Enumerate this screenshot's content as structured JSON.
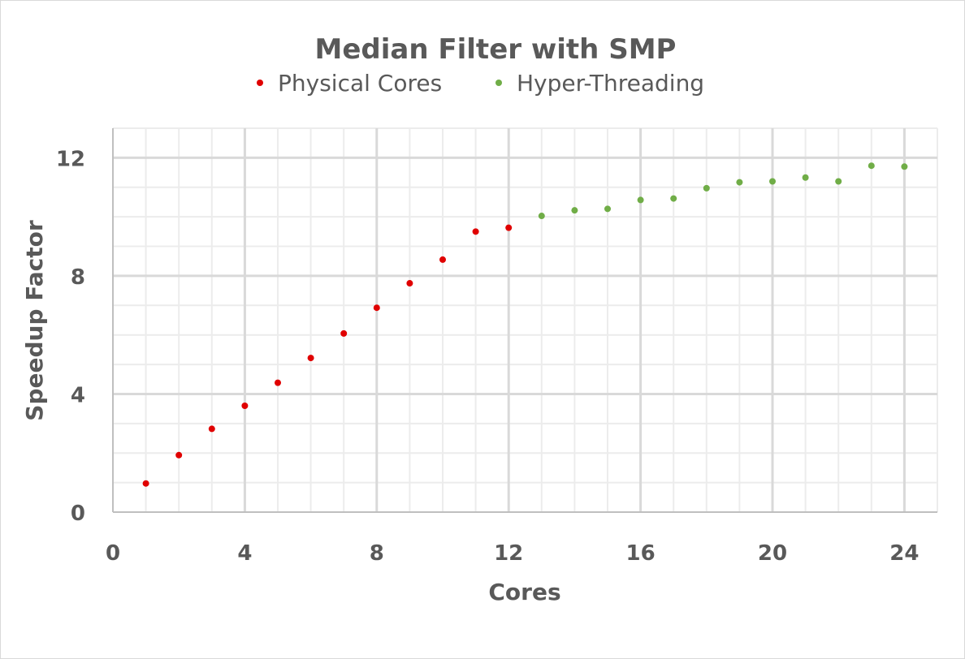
{
  "chart_data": {
    "type": "scatter",
    "title": "Median Filter with SMP",
    "xlabel": "Cores",
    "ylabel": "Speedup Factor",
    "xlim": [
      0,
      25
    ],
    "ylim": [
      0,
      13
    ],
    "x_ticks": [
      0,
      4,
      8,
      12,
      16,
      20,
      24
    ],
    "y_ticks": [
      0,
      4,
      8,
      12
    ],
    "x_minor_step": 1,
    "y_minor_step": 1,
    "grid": true,
    "legend_position": "top",
    "series": [
      {
        "name": "Physical Cores",
        "color": "#e00000",
        "x": [
          1,
          2,
          3,
          4,
          5,
          6,
          7,
          8,
          9,
          10,
          11,
          12
        ],
        "y": [
          0.97,
          1.93,
          2.82,
          3.6,
          4.38,
          5.22,
          6.05,
          6.92,
          7.75,
          8.55,
          9.5,
          9.63
        ]
      },
      {
        "name": "Hyper-Threading",
        "color": "#70ad47",
        "x": [
          13,
          14,
          15,
          16,
          17,
          18,
          19,
          20,
          21,
          22,
          23,
          24
        ],
        "y": [
          10.03,
          10.22,
          10.27,
          10.57,
          10.62,
          10.97,
          11.17,
          11.2,
          11.33,
          11.2,
          11.73,
          11.7
        ]
      }
    ]
  }
}
